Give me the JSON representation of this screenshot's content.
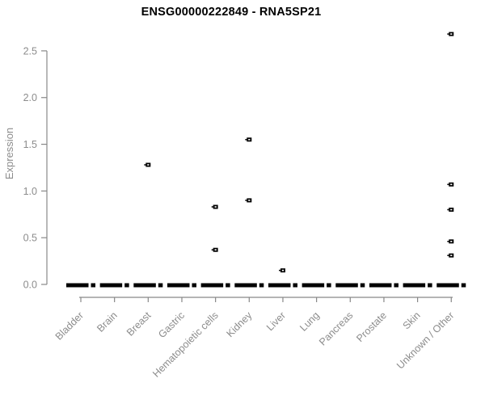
{
  "window": {
    "background": "#ffffff"
  },
  "chart_data": {
    "type": "scatter",
    "title": "ENSG00000222849 - RNA5SP21",
    "xlabel": "",
    "ylabel": "Expression",
    "ylim": [
      0,
      2.7
    ],
    "yticks": [
      0.0,
      0.5,
      1.0,
      1.5,
      2.0,
      2.5
    ],
    "ytick_labels": [
      "0.0",
      "0.5",
      "1.0",
      "1.5",
      "2.0",
      "2.5"
    ],
    "categories": [
      "Bladder",
      "Brain",
      "Breast",
      "Gastric",
      "Hematopoietic cells",
      "Kidney",
      "Liver",
      "Lung",
      "Pancreas",
      "Prostate",
      "Skin",
      "Unknown / Other"
    ],
    "baseline_clusters": {
      "note": "dense horizontal cluster of samples at expression 0 under every category",
      "value": 0.0,
      "present_in_all_categories": true
    },
    "outlier_points": [
      {
        "category": "Breast",
        "value": 1.28
      },
      {
        "category": "Hematopoietic cells",
        "value": 0.83
      },
      {
        "category": "Hematopoietic cells",
        "value": 0.37
      },
      {
        "category": "Kidney",
        "value": 1.55
      },
      {
        "category": "Kidney",
        "value": 0.9
      },
      {
        "category": "Liver",
        "value": 0.15
      },
      {
        "category": "Unknown / Other",
        "value": 2.68
      },
      {
        "category": "Unknown / Other",
        "value": 1.07
      },
      {
        "category": "Unknown / Other",
        "value": 0.8
      },
      {
        "category": "Unknown / Other",
        "value": 0.46
      },
      {
        "category": "Unknown / Other",
        "value": 0.31
      }
    ],
    "grid": false,
    "legend": false,
    "colors": {
      "marker": "#000000",
      "axis": "#888888",
      "tick_label": "#8c8c8c",
      "title": "#000000",
      "background": "#ffffff"
    }
  }
}
